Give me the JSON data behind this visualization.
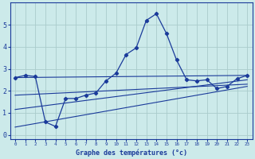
{
  "title": "Graphe des températures (°c)",
  "background_color": "#cceaea",
  "grid_color": "#aacccc",
  "line_color": "#1a3a9a",
  "xlim": [
    -0.5,
    23.5
  ],
  "ylim": [
    -0.2,
    6.0
  ],
  "xtick_labels": [
    "0",
    "1",
    "2",
    "3",
    "4",
    "5",
    "6",
    "7",
    "8",
    "9",
    "10",
    "11",
    "12",
    "13",
    "14",
    "15",
    "16",
    "17",
    "18",
    "19",
    "20",
    "21",
    "22",
    "23"
  ],
  "yticks": [
    0,
    1,
    2,
    3,
    4,
    5
  ],
  "series_main": {
    "x": [
      0,
      1,
      2,
      3,
      4,
      5,
      6,
      7,
      8,
      9,
      10,
      11,
      12,
      13,
      14,
      15,
      16,
      17,
      18,
      19,
      20,
      21,
      22,
      23
    ],
    "y": [
      2.6,
      2.7,
      2.65,
      0.58,
      0.38,
      1.65,
      1.65,
      1.8,
      1.9,
      2.45,
      2.8,
      3.65,
      3.95,
      5.2,
      5.5,
      4.6,
      3.4,
      2.5,
      2.45,
      2.5,
      2.1,
      2.2,
      2.55,
      2.7
    ]
  },
  "series_lines": [
    {
      "x": [
        0,
        23
      ],
      "y": [
        2.6,
        2.7
      ]
    },
    {
      "x": [
        0,
        23
      ],
      "y": [
        1.8,
        2.3
      ]
    },
    {
      "x": [
        0,
        23
      ],
      "y": [
        1.15,
        2.5
      ]
    },
    {
      "x": [
        0,
        23
      ],
      "y": [
        0.35,
        2.2
      ]
    }
  ]
}
